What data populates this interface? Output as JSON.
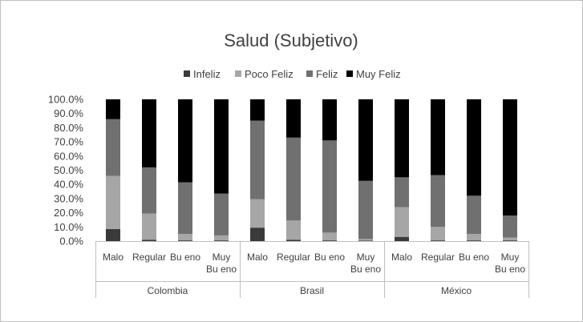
{
  "chart_data": {
    "type": "bar",
    "stacked": true,
    "title": "Salud (Subjetivo)",
    "xlabel": "",
    "ylabel": "",
    "ylim": [
      0,
      100
    ],
    "y_ticks": [
      "0.0%",
      "10.0%",
      "20.0%",
      "30.0%",
      "40.0%",
      "50.0%",
      "60.0%",
      "70.0%",
      "80.0%",
      "90.0%",
      "100.0%"
    ],
    "legend_position": "top",
    "groups": [
      {
        "name": "Colombia",
        "categories": [
          "Malo",
          "Regular",
          "Bueno",
          "Muy Bueno"
        ]
      },
      {
        "name": "Brasil",
        "categories": [
          "Malo",
          "Regular",
          "Bueno",
          "Muy Bueno"
        ]
      },
      {
        "name": "México",
        "categories": [
          "Malo",
          "Regular",
          "Bueno",
          "Muy Bueno"
        ]
      }
    ],
    "category_display": [
      "Malo",
      "Regular",
      "Bu eno",
      "Muy\nBu eno"
    ],
    "series": [
      {
        "name": "Infeliz",
        "color": "#3a3a3a",
        "values": [
          8.5,
          1.0,
          0.5,
          0.5,
          9.5,
          1.0,
          0.5,
          0.3,
          3.0,
          0.5,
          0.5,
          0.5
        ]
      },
      {
        "name": "Poco Feliz",
        "color": "#a6a6a6",
        "values": [
          37.5,
          18.5,
          4.5,
          3.5,
          20.0,
          13.5,
          5.5,
          1.2,
          21.0,
          9.5,
          4.5,
          2.0
        ]
      },
      {
        "name": "Feliz",
        "color": "#707070",
        "values": [
          40.0,
          32.5,
          36.5,
          29.5,
          55.5,
          58.5,
          65.0,
          41.0,
          21.0,
          36.5,
          27.0,
          15.5
        ]
      },
      {
        "name": "Muy Feliz",
        "color": "#000000",
        "values": [
          14.0,
          48.0,
          58.5,
          66.5,
          15.0,
          27.0,
          29.0,
          57.5,
          55.0,
          53.5,
          68.0,
          82.0
        ]
      }
    ]
  }
}
